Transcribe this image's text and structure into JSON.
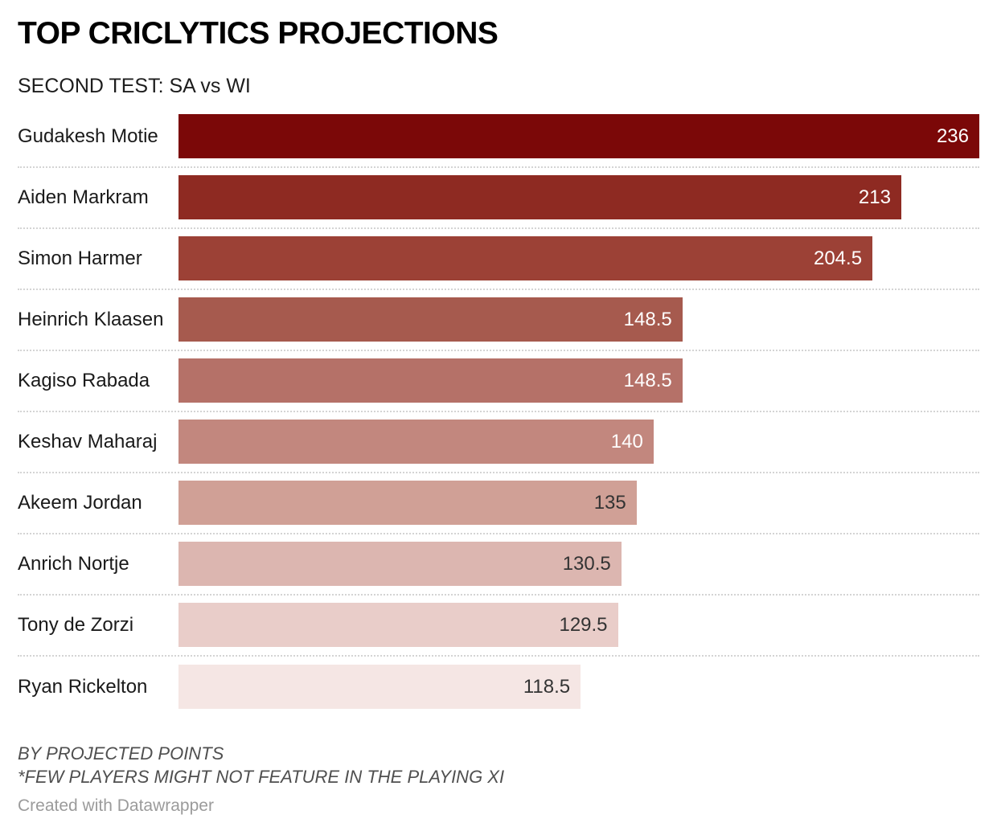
{
  "header": {
    "title": "TOP CRICLYTICS PROJECTIONS",
    "subtitle": "SECOND TEST: SA vs WI"
  },
  "chart_data": {
    "type": "bar",
    "orientation": "horizontal",
    "title": "TOP CRICLYTICS PROJECTIONS",
    "subtitle": "SECOND TEST: SA vs WI",
    "categories": [
      "Gudakesh Motie",
      "Aiden Markram",
      "Simon Harmer",
      "Heinrich Klaasen",
      "Kagiso Rabada",
      "Keshav Maharaj",
      "Akeem Jordan",
      "Anrich Nortje",
      "Tony de Zorzi",
      "Ryan Rickelton"
    ],
    "values": [
      236,
      213,
      204.5,
      148.5,
      148.5,
      140,
      135,
      130.5,
      129.5,
      118.5
    ],
    "value_labels": [
      "236",
      "213",
      "204.5",
      "148.5",
      "148.5",
      "140",
      "135",
      "130.5",
      "129.5",
      "118.5"
    ],
    "bar_colors": [
      "#7b0808",
      "#8e2a22",
      "#9c4136",
      "#a65a4e",
      "#b57168",
      "#c2877e",
      "#d0a096",
      "#dcb6b0",
      "#e9cdc9",
      "#f5e6e4"
    ],
    "value_label_colors": [
      "#ffffff",
      "#ffffff",
      "#ffffff",
      "#ffffff",
      "#ffffff",
      "#ffffff",
      "#333333",
      "#333333",
      "#333333",
      "#333333"
    ],
    "xlim": [
      0,
      236
    ],
    "xlabel": "",
    "ylabel": "",
    "grid": false,
    "legend": false,
    "value_labels_position": "inside-end",
    "separator_color": "#d4d4d4"
  },
  "footer": {
    "note1": "BY PROJECTED POINTS",
    "note2": "*FEW PLAYERS MIGHT NOT FEATURE IN THE PLAYING XI",
    "attribution": "Created with Datawrapper"
  }
}
